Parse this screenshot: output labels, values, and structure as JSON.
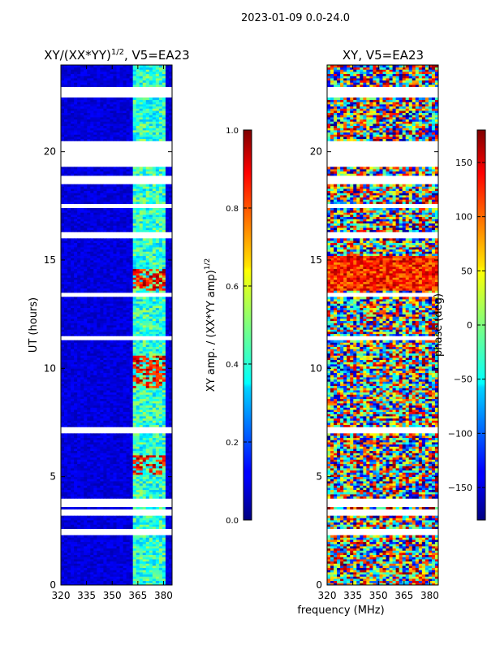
{
  "figure": {
    "suptitle": "2023-01-09 0.0-24.0",
    "shared_xlabel": "frequency (MHz)"
  },
  "chart_data": [
    {
      "type": "heatmap",
      "title": "XY/(XX*YY)",
      "title_exponent": "1/2",
      "title_suffix": ", V5=EA23",
      "ylabel": "UT (hours)",
      "xlim": [
        320,
        385
      ],
      "ylim": [
        0,
        24
      ],
      "x_ticks": [
        320,
        335,
        350,
        365,
        380
      ],
      "y_ticks": [
        0,
        5,
        10,
        15,
        20
      ],
      "colorbar": {
        "label": "XY amp. / (XX*YY amp)",
        "label_exponent": "1/2",
        "range": [
          0.0,
          1.0
        ],
        "ticks": [
          "0.0",
          "0.2",
          "0.4",
          "0.6",
          "0.8",
          "1.0"
        ],
        "colormap": "jet"
      },
      "gaps_hours": [
        [
          18.5,
          18.9
        ],
        [
          19.3,
          20.5
        ],
        [
          22.5,
          23.0
        ],
        [
          2.3,
          2.6
        ],
        [
          3.2,
          3.5
        ],
        [
          3.6,
          4.0
        ],
        [
          13.3,
          13.5
        ],
        [
          16.0,
          16.3
        ],
        [
          17.4,
          17.6
        ],
        [
          7.0,
          7.3
        ],
        [
          11.3,
          11.5
        ]
      ],
      "features": "background amplitude near 0.0 (dark blue); bright band of values 0.3–1.0 around 362–382 MHz, strongest near 14 h, 9–10.5 h and 5–6 h"
    },
    {
      "type": "heatmap",
      "title": "XY, V5=EA23",
      "xlim": [
        320,
        385
      ],
      "ylim": [
        0,
        24
      ],
      "x_ticks": [
        320,
        335,
        350,
        365,
        380
      ],
      "y_ticks": [
        0,
        5,
        10,
        15,
        20
      ],
      "colorbar": {
        "label": "phase (deg)",
        "range": [
          -180,
          180
        ],
        "ticks": [
          "150",
          "100",
          "50",
          "0",
          "−50",
          "−100",
          "−150"
        ],
        "colormap": "jet"
      },
      "gaps_hours": [
        [
          18.5,
          18.9
        ],
        [
          19.3,
          20.5
        ],
        [
          22.5,
          23.0
        ],
        [
          2.3,
          2.6
        ],
        [
          3.2,
          3.5
        ],
        [
          3.6,
          4.0
        ],
        [
          13.3,
          13.5
        ],
        [
          16.0,
          16.3
        ],
        [
          17.4,
          17.6
        ],
        [
          7.0,
          7.3
        ],
        [
          11.3,
          11.5
        ]
      ],
      "features": "noisy phase between -180 and 180 deg; mostly warm (+100 deg) near 14–15 h, mixed elsewhere"
    }
  ]
}
